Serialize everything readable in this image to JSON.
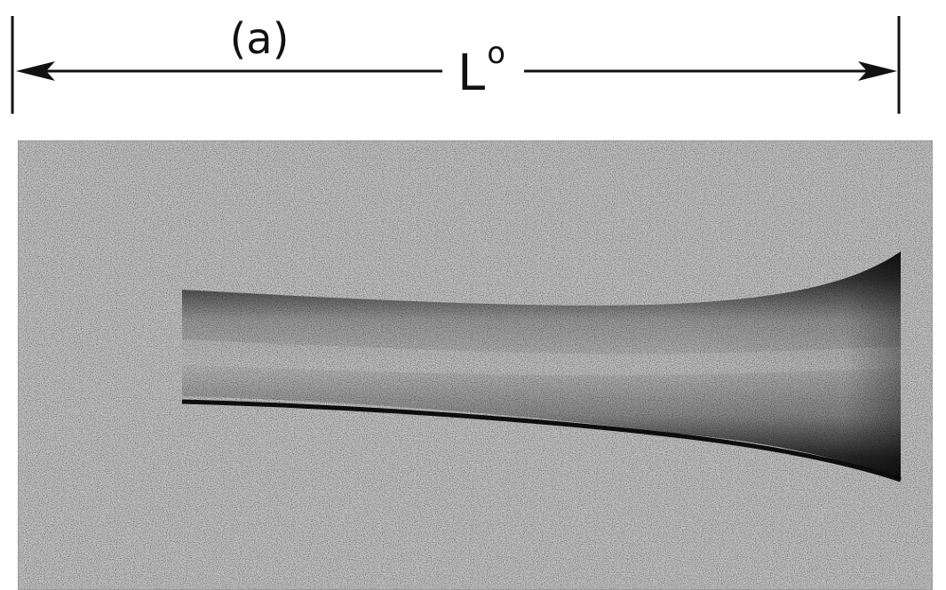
{
  "figure": {
    "panel_label": "(a)",
    "length_symbol": "L",
    "length_superscript": "o"
  },
  "colors": {
    "ink": "#111111",
    "background": "#ffffff",
    "photo_base": "#c2c2c2",
    "specimen_dark": "#1a1a1a",
    "specimen_mid": "#8a8a8a"
  }
}
